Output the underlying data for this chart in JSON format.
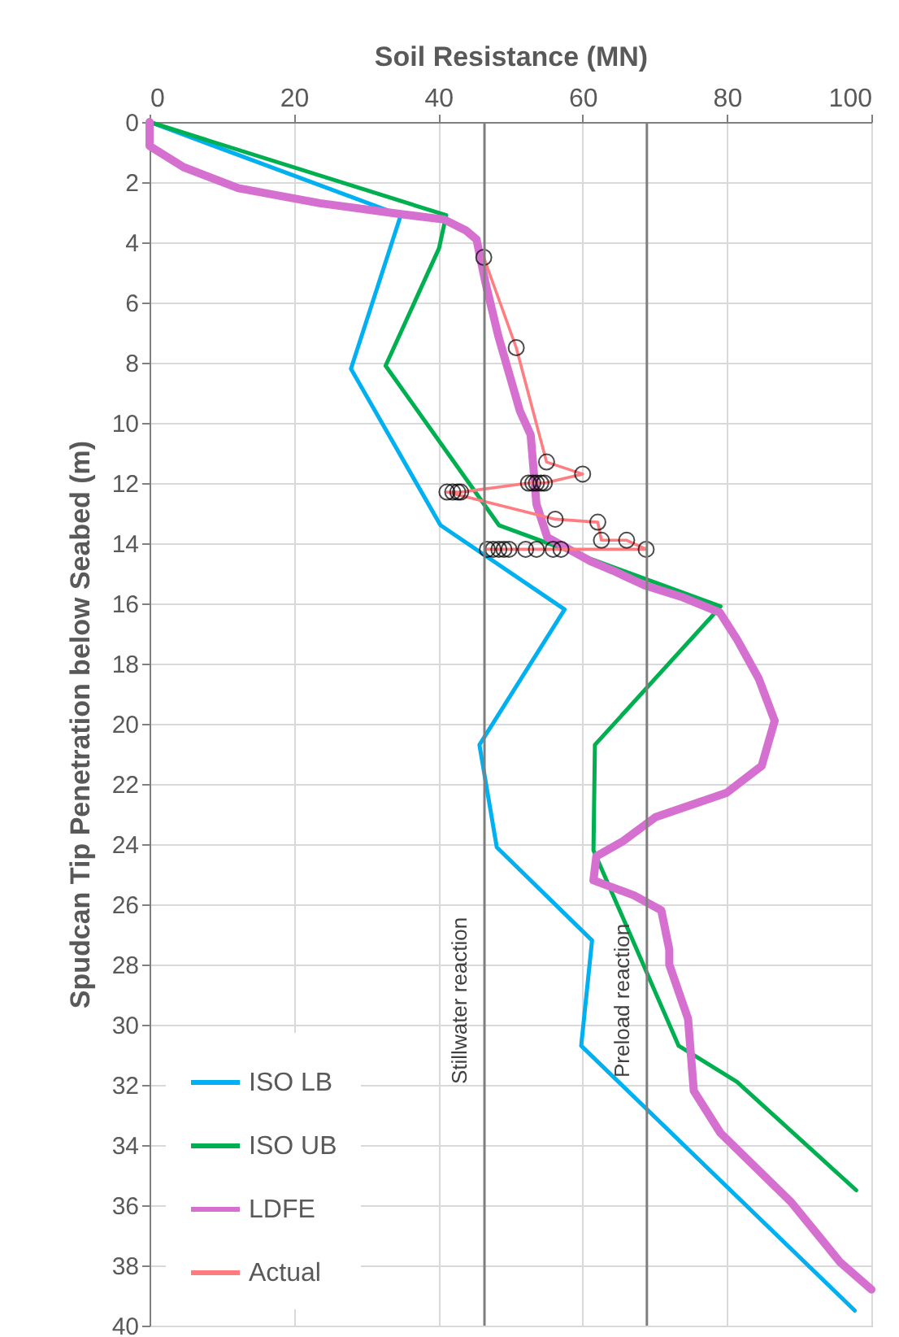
{
  "chart_data": {
    "type": "line",
    "xlabel": "Soil Resistance (MN)",
    "ylabel": "Spudcan Tip Penetration below Seabed (m)",
    "xlim": [
      0,
      100
    ],
    "xticks": [
      0,
      20,
      40,
      60,
      80,
      100
    ],
    "ylim": [
      40,
      0
    ],
    "yticks": [
      0,
      2,
      4,
      6,
      8,
      10,
      12,
      14,
      16,
      18,
      20,
      22,
      24,
      26,
      28,
      30,
      32,
      34,
      36,
      38,
      40
    ],
    "grid": true,
    "legend": "bottom left",
    "marker": "none",
    "line_style": "solid",
    "series": [
      {
        "name": "ISO LB",
        "color": "#00b0f0",
        "x": [
          0,
          34.8,
          27.9,
          40.3,
          57.5,
          45.7,
          48.1,
          61.3,
          59.8,
          97.7
        ],
        "values": [
          0,
          3.1,
          8.2,
          13.4,
          16.2,
          20.7,
          24.1,
          27.2,
          30.7,
          39.5
        ]
      },
      {
        "name": "ISO UB",
        "color": "#00b050",
        "x": [
          0,
          41.1,
          40.1,
          32.7,
          48.4,
          79.1,
          78,
          61.7,
          61.5,
          73.3,
          81.4,
          97.9
        ],
        "values": [
          0,
          3.1,
          4.2,
          8.1,
          13.4,
          16.1,
          16.4,
          20.7,
          24.2,
          30.7,
          31.9,
          35.5
        ]
      },
      {
        "name": "LDFE",
        "color": "#d670d0",
        "x": [
          0,
          0,
          4.7,
          12.3,
          23.6,
          34.8,
          40.8,
          43.8,
          45.3,
          46.5,
          48.3,
          51.3,
          52.8,
          53.6,
          55.1,
          61.1,
          64.1,
          68.6,
          73.9,
          79,
          81.4,
          84.4,
          86.6,
          84.8,
          79.9,
          70.1,
          65.6,
          61.9,
          61.5,
          62.6,
          67.1,
          70.9,
          72,
          72,
          74.6,
          75.4,
          79.1,
          88.9,
          95.7,
          100
        ],
        "values": [
          0,
          0.8,
          1.5,
          2.2,
          2.7,
          3.06,
          3.24,
          3.6,
          3.9,
          5.3,
          7.1,
          9.6,
          10.4,
          12.7,
          13.8,
          14.6,
          14.9,
          15.4,
          15.8,
          16.3,
          17.2,
          18.5,
          19.9,
          21.4,
          22.3,
          23.1,
          23.9,
          24.4,
          25.2,
          25.3,
          25.7,
          26.2,
          27.5,
          28,
          29.8,
          32.2,
          33.6,
          35.9,
          37.9,
          38.8
        ]
      },
      {
        "name": "Actual",
        "color": "#ff7c80",
        "marker": "circle",
        "x": [
          46.3,
          50.8,
          55.0,
          60.0,
          54.7,
          54.2,
          53.6,
          53.1,
          52.5,
          43.1,
          42.7,
          42.0,
          41.2,
          56.2,
          62.1,
          62.6,
          66.1,
          68.8,
          57.0,
          55.9,
          53.6,
          52.1,
          49.8,
          49.1,
          48.4,
          47.6,
          46.8
        ],
        "values": [
          4.5,
          7.5,
          11.3,
          11.7,
          12.0,
          12.0,
          12.0,
          12.0,
          12.0,
          12.3,
          12.3,
          12.3,
          12.3,
          13.2,
          13.3,
          13.9,
          13.9,
          14.2,
          14.2,
          14.2,
          14.2,
          14.2,
          14.2,
          14.2,
          14.2,
          14.2,
          14.2
        ]
      }
    ],
    "ref_lines": [
      {
        "axis": "x",
        "value": 46.4,
        "label": "Stillwater reaction",
        "color": "#7f7f7f"
      },
      {
        "axis": "x",
        "value": 68.9,
        "label": "Preload reaction",
        "color": "#7f7f7f"
      }
    ]
  }
}
